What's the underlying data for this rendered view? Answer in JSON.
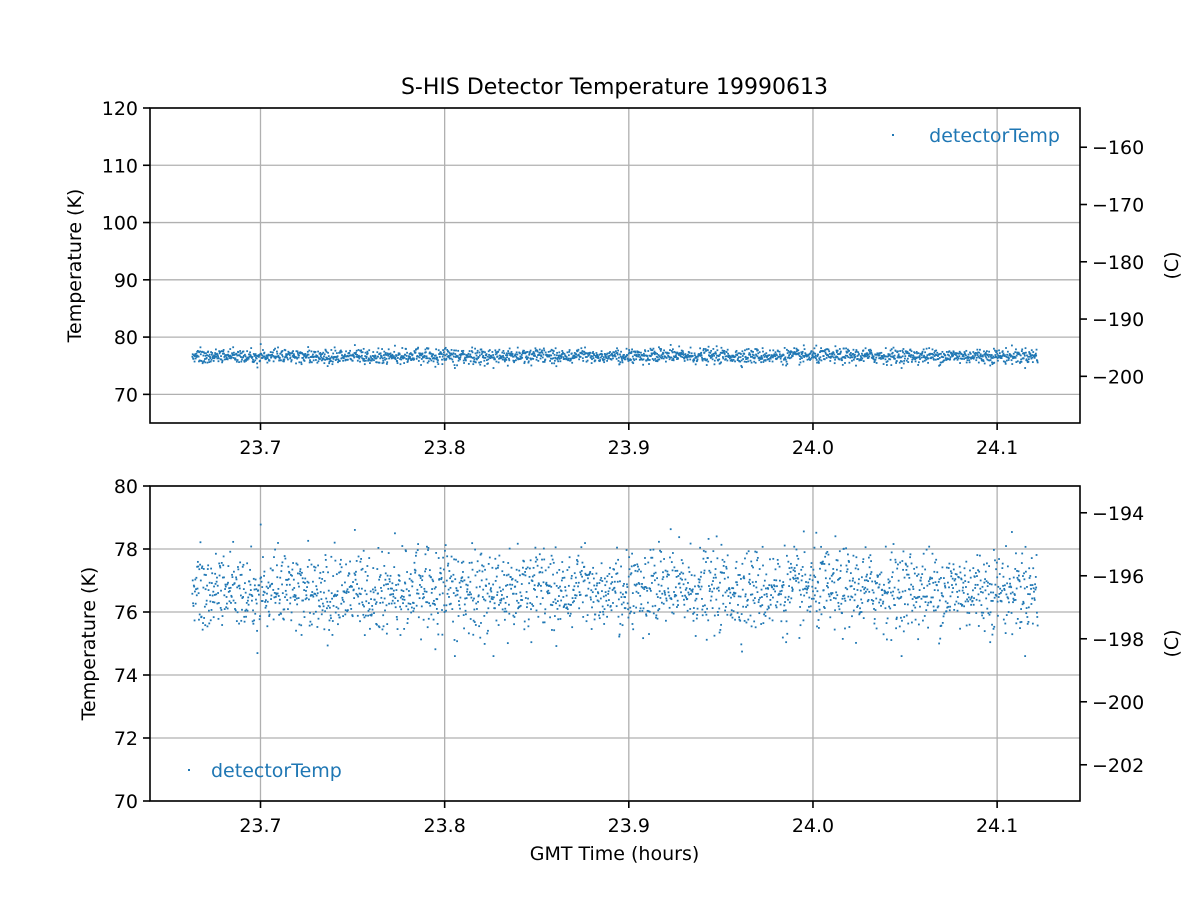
{
  "chart_data": {
    "title": "S-HIS Detector Temperature 19990613",
    "type": "scatter",
    "color": "#1f77b4",
    "xlabel": "GMT Time (hours)",
    "panels": [
      {
        "name": "top",
        "ylabel": "Temperature (K)",
        "y2label": "(C)",
        "xlim": [
          23.64,
          24.145
        ],
        "ylim": [
          65,
          120
        ],
        "y2lim": [
          -208.15,
          -153.15
        ],
        "xticks": [
          23.7,
          23.8,
          23.9,
          24.0,
          24.1
        ],
        "yticks": [
          70,
          80,
          90,
          100,
          110,
          120
        ],
        "y2ticks": [
          -200,
          -190,
          -180,
          -170,
          -160
        ],
        "legend": {
          "label": "detectorTemp",
          "loc": "upper right"
        }
      },
      {
        "name": "bottom",
        "ylabel": "Temperature (K)",
        "y2label": "(C)",
        "xlim": [
          23.64,
          24.145
        ],
        "ylim": [
          70,
          80
        ],
        "y2lim": [
          -203.15,
          -193.15
        ],
        "xticks": [
          23.7,
          23.8,
          23.9,
          24.0,
          24.1
        ],
        "yticks": [
          70,
          72,
          74,
          76,
          78,
          80
        ],
        "y2ticks": [
          -202,
          -200,
          -198,
          -196,
          -194
        ],
        "legend": {
          "label": "detectorTemp",
          "loc": "lower left"
        }
      }
    ],
    "series": [
      {
        "name": "detectorTemp",
        "x_range": [
          23.663,
          24.122
        ],
        "y_mean": 76.7,
        "y_spread": 0.65,
        "y_min": 74.6,
        "y_max": 79.0,
        "n_points": 2300
      }
    ]
  }
}
